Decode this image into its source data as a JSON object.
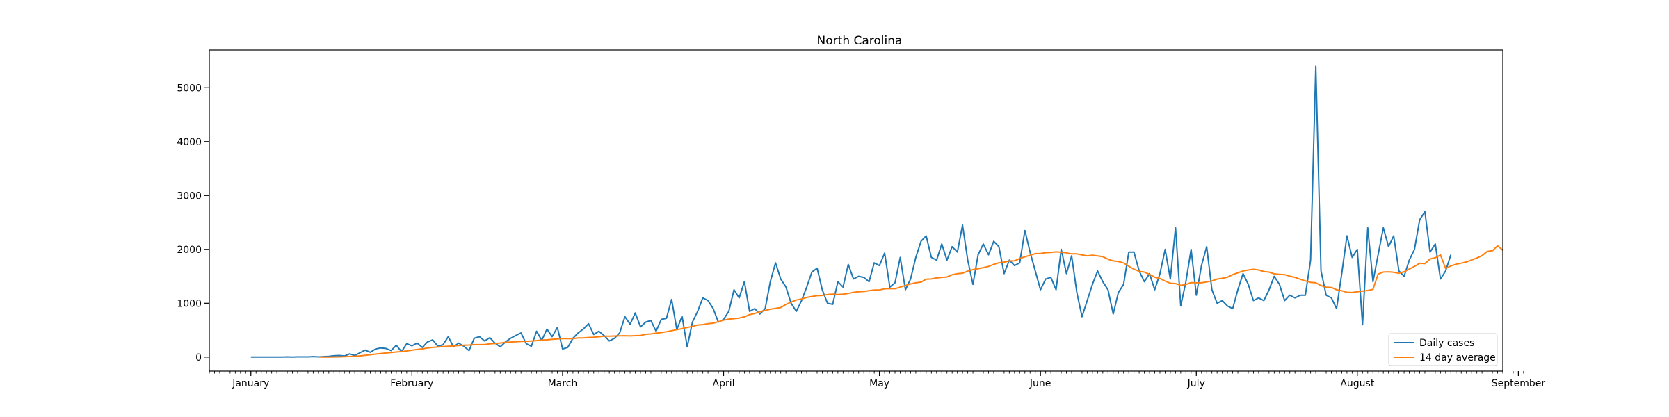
{
  "chart_data": {
    "type": "line",
    "title": "North Carolina",
    "xlabel": "",
    "ylabel": "",
    "x_domain_days": [
      -8,
      241
    ],
    "x_start_date": "2020-01-01",
    "xticks": [
      {
        "label": "January",
        "day": 0
      },
      {
        "label": "February",
        "day": 31
      },
      {
        "label": "March",
        "day": 60
      },
      {
        "label": "April",
        "day": 91
      },
      {
        "label": "May",
        "day": 121
      },
      {
        "label": "June",
        "day": 152
      },
      {
        "label": "July",
        "day": 182
      },
      {
        "label": "August",
        "day": 213
      },
      {
        "label": "September",
        "day": 244
      }
    ],
    "ylim": [
      -260,
      5700
    ],
    "yticks": [
      0,
      1000,
      2000,
      3000,
      4000,
      5000
    ],
    "grid": false,
    "legend_position": "lower right",
    "series": [
      {
        "name": "Daily cases",
        "color": "#1f77b4",
        "x_start_day": 0,
        "values": [
          0,
          0,
          0,
          0,
          0,
          0,
          0,
          5,
          0,
          5,
          5,
          5,
          10,
          5,
          10,
          15,
          25,
          30,
          20,
          60,
          30,
          80,
          130,
          90,
          150,
          170,
          160,
          120,
          220,
          100,
          250,
          210,
          260,
          180,
          280,
          320,
          200,
          230,
          380,
          190,
          260,
          200,
          120,
          350,
          380,
          300,
          360,
          260,
          190,
          280,
          350,
          400,
          450,
          250,
          200,
          480,
          310,
          520,
          380,
          550,
          150,
          180,
          350,
          450,
          520,
          620,
          420,
          480,
          400,
          300,
          350,
          450,
          750,
          610,
          820,
          560,
          650,
          680,
          480,
          700,
          720,
          1070,
          510,
          760,
          190,
          650,
          850,
          1100,
          1050,
          900,
          650,
          700,
          850,
          1250,
          1100,
          1400,
          850,
          900,
          800,
          900,
          1400,
          1750,
          1450,
          1300,
          1000,
          850,
          1050,
          1300,
          1580,
          1650,
          1250,
          1000,
          980,
          1400,
          1300,
          1720,
          1450,
          1500,
          1480,
          1400,
          1750,
          1700,
          1930,
          1300,
          1380,
          1850,
          1250,
          1450,
          1850,
          2150,
          2250,
          1850,
          1800,
          2100,
          1800,
          2050,
          1950,
          2450,
          1800,
          1350,
          1900,
          2100,
          1900,
          2150,
          2050,
          1550,
          1800,
          1700,
          1750,
          2350,
          1950,
          1600,
          1250,
          1450,
          1480,
          1250,
          2000,
          1550,
          1880,
          1200,
          750,
          1050,
          1350,
          1600,
          1400,
          1250,
          800,
          1200,
          1350,
          1950,
          1950,
          1600,
          1400,
          1550,
          1250,
          1550,
          2000,
          1450,
          2400,
          950,
          1400,
          2000,
          1150,
          1700,
          2050,
          1250,
          1000,
          1050,
          950,
          900,
          1250,
          1550,
          1350,
          1050,
          1100,
          1050,
          1250,
          1500,
          1350,
          1050,
          1150,
          1100,
          1150,
          1150,
          1800,
          5400,
          1600,
          1150,
          1100,
          900,
          1550,
          2250,
          1850,
          2000,
          600,
          2400,
          1400,
          1900,
          2400,
          2050,
          2250,
          1600,
          1500,
          1800,
          2000,
          2550,
          2700,
          1950,
          2100,
          1450,
          1600,
          1900
        ]
      },
      {
        "name": "14 day average",
        "color": "#ff7f0e",
        "x_start_day": 13,
        "values": [
          0,
          0,
          1,
          3,
          5,
          8,
          11,
          16,
          22,
          33,
          44,
          56,
          67,
          77,
          85,
          95,
          102,
          114,
          128,
          141,
          153,
          168,
          180,
          189,
          196,
          202,
          208,
          215,
          220,
          224,
          231,
          231,
          234,
          246,
          253,
          261,
          273,
          280,
          285,
          291,
          293,
          299,
          306,
          315,
          321,
          331,
          336,
          343,
          343,
          343,
          356,
          357,
          365,
          370,
          378,
          387,
          387,
          391,
          395,
          396,
          393,
          398,
          402,
          424,
          430,
          444,
          456,
          471,
          491,
          510,
          528,
          551,
          570,
          597,
          603,
          621,
          630,
          658,
          685,
          705,
          714,
          724,
          748,
          789,
          810,
          844,
          863,
          890,
          905,
          920,
          978,
          1022,
          1060,
          1079,
          1109,
          1125,
          1141,
          1145,
          1161,
          1169,
          1163,
          1168,
          1182,
          1203,
          1213,
          1219,
          1232,
          1245,
          1247,
          1269,
          1270,
          1270,
          1299,
          1330,
          1358,
          1380,
          1393,
          1445,
          1450,
          1470,
          1480,
          1487,
          1529,
          1548,
          1558,
          1597,
          1625,
          1642,
          1661,
          1684,
          1721,
          1751,
          1764,
          1785,
          1788,
          1830,
          1862,
          1890,
          1921,
          1922,
          1939,
          1944,
          1954,
          1947,
          1936,
          1916,
          1916,
          1897,
          1880,
          1890,
          1878,
          1865,
          1818,
          1786,
          1774,
          1749,
          1686,
          1633,
          1591,
          1578,
          1536,
          1483,
          1460,
          1411,
          1372,
          1364,
          1332,
          1349,
          1384,
          1379,
          1380,
          1395,
          1414,
          1449,
          1462,
          1484,
          1531,
          1565,
          1599,
          1617,
          1630,
          1617,
          1588,
          1578,
          1545,
          1537,
          1530,
          1502,
          1480,
          1445,
          1414,
          1387,
          1379,
          1327,
          1299,
          1293,
          1251,
          1233,
          1203,
          1199,
          1214,
          1225,
          1236,
          1257,
          1542,
          1580,
          1583,
          1575,
          1557,
          1585,
          1634,
          1684,
          1742,
          1734,
          1822,
          1844,
          1896,
          1646,
          1693,
          1724,
          1744,
          1767,
          1803,
          1840,
          1884,
          1962,
          1975,
          2067,
          1983,
          1971,
          1982,
          1974
        ]
      }
    ]
  }
}
